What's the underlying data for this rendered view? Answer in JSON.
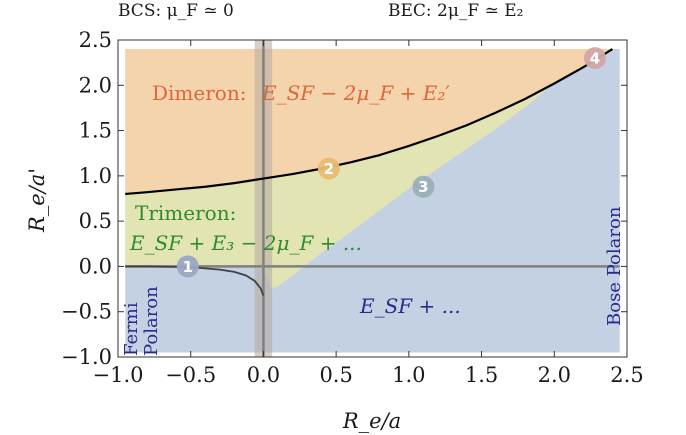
{
  "chart_data": {
    "type": "area",
    "title_left": "BCS: μ_F ≃ 0",
    "title_right": "BEC: 2μ_F ≃ E₂",
    "xlabel": "R_e/a",
    "ylabel": "R_e/a'",
    "xlim": [
      -1.0,
      2.5
    ],
    "ylim": [
      -1.0,
      2.5
    ],
    "xticks": [
      "−1.0",
      "−0.5",
      "0.0",
      "0.5",
      "1.0",
      "1.5",
      "2.0",
      "2.5"
    ],
    "yticks": [
      "−1.0",
      "−0.5",
      "0.0",
      "0.5",
      "1.0",
      "1.5",
      "2.0",
      "2.5"
    ],
    "xtick_values": [
      -1.0,
      -0.5,
      0.0,
      0.5,
      1.0,
      1.5,
      2.0,
      2.5
    ],
    "ytick_values": [
      -1.0,
      -0.5,
      0.0,
      0.5,
      1.0,
      1.5,
      2.0,
      2.5
    ],
    "colors": {
      "dimeron": "#f3d4ad",
      "trimeron": "#e3e4b3",
      "polaron": "#c3d1e3",
      "curve": "#000000",
      "axis_line": "#808080",
      "vband": "#b4a9a0",
      "dimeron_text": "#e0653a",
      "trimeron_text": "#2e8b2e",
      "polaron_text": "#2a2a8a",
      "vertical_text": "#2a2a8a",
      "marker1": "#9ca7c4",
      "marker2": "#e8bc72",
      "marker3": "#9ab0b8",
      "marker4": "#d2a6a8"
    },
    "dimeron_boundary": {
      "x": [
        -0.95,
        -0.8,
        -0.6,
        -0.4,
        -0.2,
        0.0,
        0.2,
        0.4,
        0.6,
        0.8,
        1.0,
        1.2,
        1.4,
        1.6,
        1.8,
        2.0,
        2.2,
        2.4
      ],
      "y": [
        0.8,
        0.82,
        0.85,
        0.88,
        0.92,
        0.97,
        1.02,
        1.08,
        1.15,
        1.23,
        1.33,
        1.44,
        1.56,
        1.7,
        1.85,
        2.02,
        2.2,
        2.4
      ]
    },
    "trimeron_lower_boundary": {
      "x": [
        0.05,
        0.1,
        0.2,
        0.4,
        0.6,
        0.8,
        1.0,
        1.2,
        1.4,
        1.6,
        1.8,
        2.0
      ],
      "y": [
        -0.25,
        -0.22,
        -0.1,
        0.15,
        0.38,
        0.62,
        0.86,
        1.08,
        1.3,
        1.52,
        1.76,
        2.02
      ]
    },
    "fermi_branch": {
      "x": [
        -0.95,
        -0.8,
        -0.6,
        -0.45,
        -0.3,
        -0.2,
        -0.12,
        -0.06,
        -0.02,
        0.0
      ],
      "y": [
        0.0,
        0.0,
        -0.005,
        -0.015,
        -0.035,
        -0.06,
        -0.1,
        -0.16,
        -0.24,
        -0.32
      ]
    },
    "markers": [
      {
        "label": "1",
        "x": -0.52,
        "y": 0.0
      },
      {
        "label": "2",
        "x": 0.45,
        "y": 1.08
      },
      {
        "label": "3",
        "x": 1.1,
        "y": 0.88
      },
      {
        "label": "4",
        "x": 2.28,
        "y": 2.3
      }
    ],
    "labels": {
      "dimeron": "Dimeron:",
      "dimeron_formula": "E_SF − 2μ_F + E₂′",
      "trimeron": "Trimeron:",
      "trimeron_formula": "E_SF + E₃ − 2μ_F + ...",
      "polaron_formula": "E_SF + ...",
      "bose_polaron": "Bose Polaron",
      "fermi": "Fermi",
      "polaron": "Polaron"
    }
  }
}
